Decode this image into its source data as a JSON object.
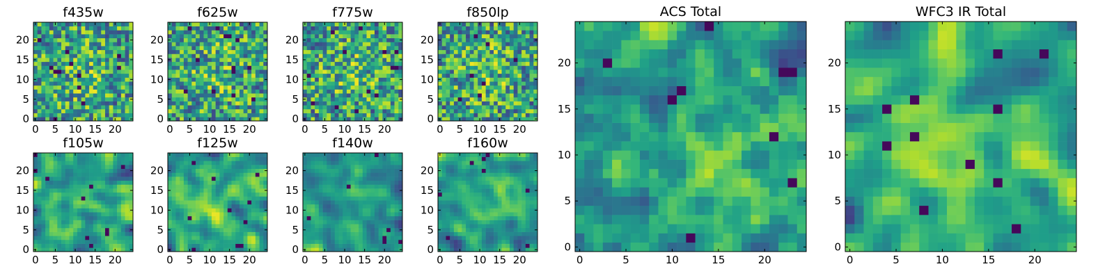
{
  "chart_data": [
    {
      "type": "heatmap",
      "title": "f435w",
      "grid_size": 25,
      "xlim": [
        0,
        24
      ],
      "ylim": [
        0,
        24
      ],
      "x_ticks": [
        0,
        5,
        10,
        15,
        20
      ],
      "y_ticks": [
        0,
        5,
        10,
        15,
        20
      ],
      "colormap": "viridis",
      "texture": "noisy"
    },
    {
      "type": "heatmap",
      "title": "f625w",
      "grid_size": 25,
      "xlim": [
        0,
        24
      ],
      "ylim": [
        0,
        24
      ],
      "x_ticks": [
        0,
        5,
        10,
        15,
        20
      ],
      "y_ticks": [
        0,
        5,
        10,
        15,
        20
      ],
      "colormap": "viridis",
      "texture": "noisy"
    },
    {
      "type": "heatmap",
      "title": "f775w",
      "grid_size": 25,
      "xlim": [
        0,
        24
      ],
      "ylim": [
        0,
        24
      ],
      "x_ticks": [
        0,
        5,
        10,
        15,
        20
      ],
      "y_ticks": [
        0,
        5,
        10,
        15,
        20
      ],
      "colormap": "viridis",
      "texture": "noisy"
    },
    {
      "type": "heatmap",
      "title": "f850lp",
      "grid_size": 25,
      "xlim": [
        0,
        24
      ],
      "ylim": [
        0,
        24
      ],
      "x_ticks": [
        0,
        5,
        10,
        15,
        20
      ],
      "y_ticks": [
        0,
        5,
        10,
        15,
        20
      ],
      "colormap": "viridis",
      "texture": "noisy"
    },
    {
      "type": "heatmap",
      "title": "f105w",
      "grid_size": 25,
      "xlim": [
        0,
        24
      ],
      "ylim": [
        0,
        24
      ],
      "x_ticks": [
        0,
        5,
        10,
        15,
        20
      ],
      "y_ticks": [
        0,
        5,
        10,
        15,
        20
      ],
      "colormap": "viridis",
      "texture": "smooth"
    },
    {
      "type": "heatmap",
      "title": "f125w",
      "grid_size": 25,
      "xlim": [
        0,
        24
      ],
      "ylim": [
        0,
        24
      ],
      "x_ticks": [
        0,
        5,
        10,
        15,
        20
      ],
      "y_ticks": [
        0,
        5,
        10,
        15,
        20
      ],
      "colormap": "viridis",
      "texture": "smooth"
    },
    {
      "type": "heatmap",
      "title": "f140w",
      "grid_size": 25,
      "xlim": [
        0,
        24
      ],
      "ylim": [
        0,
        24
      ],
      "x_ticks": [
        0,
        5,
        10,
        15,
        20
      ],
      "y_ticks": [
        0,
        5,
        10,
        15,
        20
      ],
      "colormap": "viridis",
      "texture": "smooth"
    },
    {
      "type": "heatmap",
      "title": "f160w",
      "grid_size": 25,
      "xlim": [
        0,
        24
      ],
      "ylim": [
        0,
        24
      ],
      "x_ticks": [
        0,
        5,
        10,
        15,
        20
      ],
      "y_ticks": [
        0,
        5,
        10,
        15,
        20
      ],
      "colormap": "viridis",
      "texture": "smooth"
    },
    {
      "type": "heatmap",
      "title": "ACS Total",
      "grid_size": 25,
      "xlim": [
        0,
        24
      ],
      "ylim": [
        0,
        24
      ],
      "x_ticks": [
        0,
        5,
        10,
        15,
        20
      ],
      "y_ticks": [
        0,
        5,
        10,
        15,
        20
      ],
      "colormap": "viridis",
      "texture": "medium"
    },
    {
      "type": "heatmap",
      "title": "WFC3 IR Total",
      "grid_size": 25,
      "xlim": [
        0,
        24
      ],
      "ylim": [
        0,
        24
      ],
      "x_ticks": [
        0,
        5,
        10,
        15,
        20
      ],
      "y_ticks": [
        0,
        5,
        10,
        15,
        20
      ],
      "colormap": "viridis",
      "texture": "smooth"
    }
  ]
}
